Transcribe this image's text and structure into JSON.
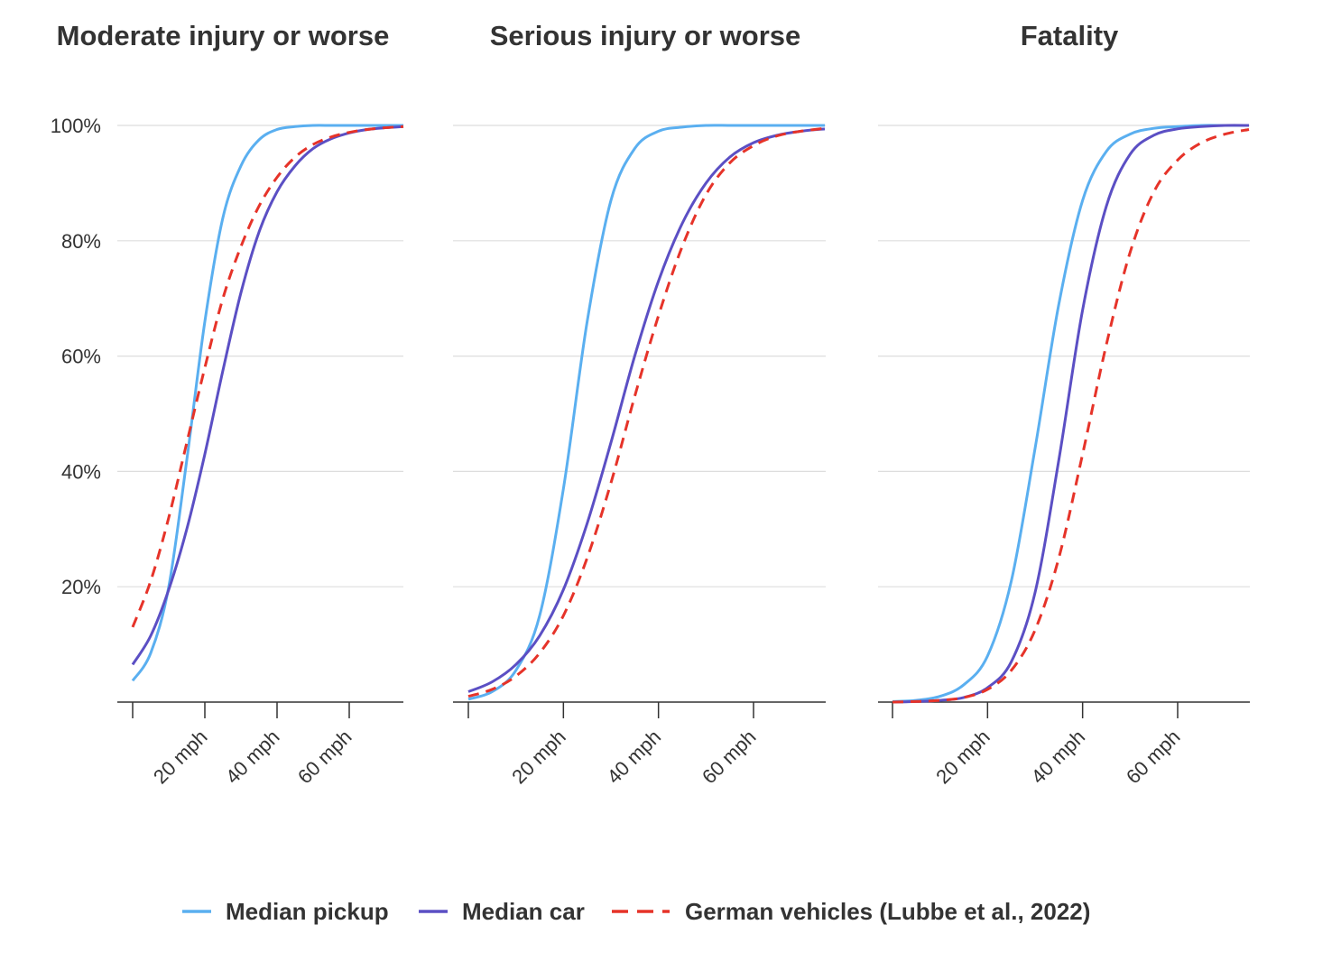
{
  "colors": {
    "median_pickup": "#5aaff0",
    "median_car": "#5b4fc4",
    "german_vehicles": "#e63329",
    "grid": "#dddddd",
    "axis": "#333333"
  },
  "legend": {
    "items": [
      {
        "key": "median_pickup",
        "label": "Median pickup",
        "dash": false
      },
      {
        "key": "median_car",
        "label": "Median car",
        "dash": false
      },
      {
        "key": "german_vehicles",
        "label": "German vehicles (Lubbe et al., 2022)",
        "dash": true
      }
    ]
  },
  "chart_data": [
    {
      "type": "line",
      "title": "Moderate injury or worse",
      "xlabel": "",
      "ylabel": "",
      "xlim": [
        0,
        75
      ],
      "ylim": [
        0,
        100
      ],
      "x_ticks": [
        0,
        20,
        40,
        60
      ],
      "x_tick_labels": [
        "",
        "20 mph",
        "40 mph",
        "60 mph"
      ],
      "y_ticks": [
        20,
        40,
        60,
        80,
        100
      ],
      "y_tick_labels": [
        "20%",
        "40%",
        "60%",
        "80%",
        "100%"
      ],
      "show_y_labels": true,
      "grid": true,
      "series": [
        {
          "name": "Median pickup",
          "key": "median_pickup",
          "x": [
            0,
            5,
            10,
            15,
            20,
            25,
            30,
            35,
            40,
            45,
            50,
            55,
            60,
            65,
            70,
            75
          ],
          "y": [
            3.7,
            8.5,
            20,
            42,
            66,
            84,
            93,
            97.5,
            99.3,
            99.8,
            100,
            100,
            100,
            100,
            100,
            100
          ]
        },
        {
          "name": "Median car",
          "key": "median_car",
          "x": [
            0,
            5,
            10,
            15,
            20,
            25,
            30,
            35,
            40,
            45,
            50,
            55,
            60,
            65,
            70,
            75
          ],
          "y": [
            6.5,
            11.5,
            19.5,
            30,
            43,
            57.5,
            71,
            81.5,
            88.5,
            93,
            96,
            97.7,
            98.7,
            99.3,
            99.6,
            99.8
          ]
        },
        {
          "name": "German vehicles (Lubbe et al., 2022)",
          "key": "german_vehicles",
          "x": [
            0,
            5,
            10,
            15,
            20,
            25,
            30,
            35,
            40,
            45,
            50,
            55,
            60,
            65,
            70,
            75
          ],
          "y": [
            13,
            21,
            32,
            45,
            58,
            70,
            79,
            86,
            91,
            94.5,
            96.7,
            98,
            98.8,
            99.3,
            99.6,
            99.8
          ]
        }
      ]
    },
    {
      "type": "line",
      "title": "Serious injury or worse",
      "xlabel": "",
      "ylabel": "",
      "xlim": [
        0,
        75
      ],
      "ylim": [
        0,
        100
      ],
      "x_ticks": [
        0,
        20,
        40,
        60
      ],
      "x_tick_labels": [
        "",
        "20 mph",
        "40 mph",
        "60 mph"
      ],
      "y_ticks": [
        20,
        40,
        60,
        80,
        100
      ],
      "y_tick_labels": [
        "20%",
        "40%",
        "60%",
        "80%",
        "100%"
      ],
      "show_y_labels": false,
      "grid": true,
      "series": [
        {
          "name": "Median pickup",
          "key": "median_pickup",
          "x": [
            0,
            5,
            10,
            15,
            20,
            25,
            30,
            35,
            40,
            45,
            50,
            55,
            60,
            65,
            70,
            75
          ],
          "y": [
            0.5,
            1.8,
            5.5,
            15,
            37,
            66,
            87,
            96,
            99,
            99.7,
            100,
            100,
            100,
            100,
            100,
            100
          ]
        },
        {
          "name": "Median car",
          "key": "median_car",
          "x": [
            0,
            5,
            10,
            15,
            20,
            25,
            30,
            35,
            40,
            45,
            50,
            55,
            60,
            65,
            70,
            75
          ],
          "y": [
            1.8,
            3.5,
            6.5,
            11.5,
            19.5,
            31,
            45,
            60,
            73,
            83,
            90,
            94.5,
            97,
            98.3,
            99,
            99.4
          ]
        },
        {
          "name": "German vehicles (Lubbe et al., 2022)",
          "key": "german_vehicles",
          "x": [
            0,
            5,
            10,
            15,
            20,
            25,
            30,
            35,
            40,
            45,
            50,
            55,
            60,
            65,
            70,
            75
          ],
          "y": [
            1,
            2.2,
            4.5,
            8.5,
            15,
            25,
            38,
            53,
            67,
            79,
            88,
            93.5,
            96.5,
            98.2,
            99,
            99.5
          ]
        }
      ]
    },
    {
      "type": "line",
      "title": "Fatality",
      "xlabel": "",
      "ylabel": "",
      "xlim": [
        0,
        75
      ],
      "ylim": [
        0,
        100
      ],
      "x_ticks": [
        0,
        20,
        40,
        60
      ],
      "x_tick_labels": [
        "",
        "20 mph",
        "40 mph",
        "60 mph"
      ],
      "y_ticks": [
        20,
        40,
        60,
        80,
        100
      ],
      "y_tick_labels": [
        "20%",
        "40%",
        "60%",
        "80%",
        "100%"
      ],
      "show_y_labels": false,
      "grid": true,
      "series": [
        {
          "name": "Median pickup",
          "key": "median_pickup",
          "x": [
            0,
            5,
            10,
            15,
            20,
            25,
            30,
            35,
            40,
            45,
            50,
            55,
            60,
            65,
            70,
            75
          ],
          "y": [
            0.1,
            0.3,
            1,
            3,
            8,
            21,
            44,
            69,
            87,
            95.5,
            98.5,
            99.5,
            99.8,
            100,
            100,
            100
          ]
        },
        {
          "name": "Median car",
          "key": "median_car",
          "x": [
            0,
            5,
            10,
            15,
            20,
            25,
            30,
            35,
            40,
            45,
            50,
            55,
            60,
            65,
            70,
            75
          ],
          "y": [
            0,
            0.1,
            0.3,
            0.8,
            2.5,
            7,
            19,
            42,
            68,
            86,
            95,
            98.3,
            99.4,
            99.8,
            100,
            100
          ]
        },
        {
          "name": "German vehicles (Lubbe et al., 2022)",
          "key": "german_vehicles",
          "x": [
            0,
            5,
            10,
            15,
            20,
            25,
            30,
            35,
            40,
            45,
            50,
            55,
            60,
            65,
            70,
            75
          ],
          "y": [
            0,
            0.1,
            0.3,
            0.8,
            2.2,
            5.5,
            12.5,
            25,
            43,
            62,
            78,
            88.5,
            94,
            97,
            98.5,
            99.3
          ]
        }
      ]
    }
  ]
}
